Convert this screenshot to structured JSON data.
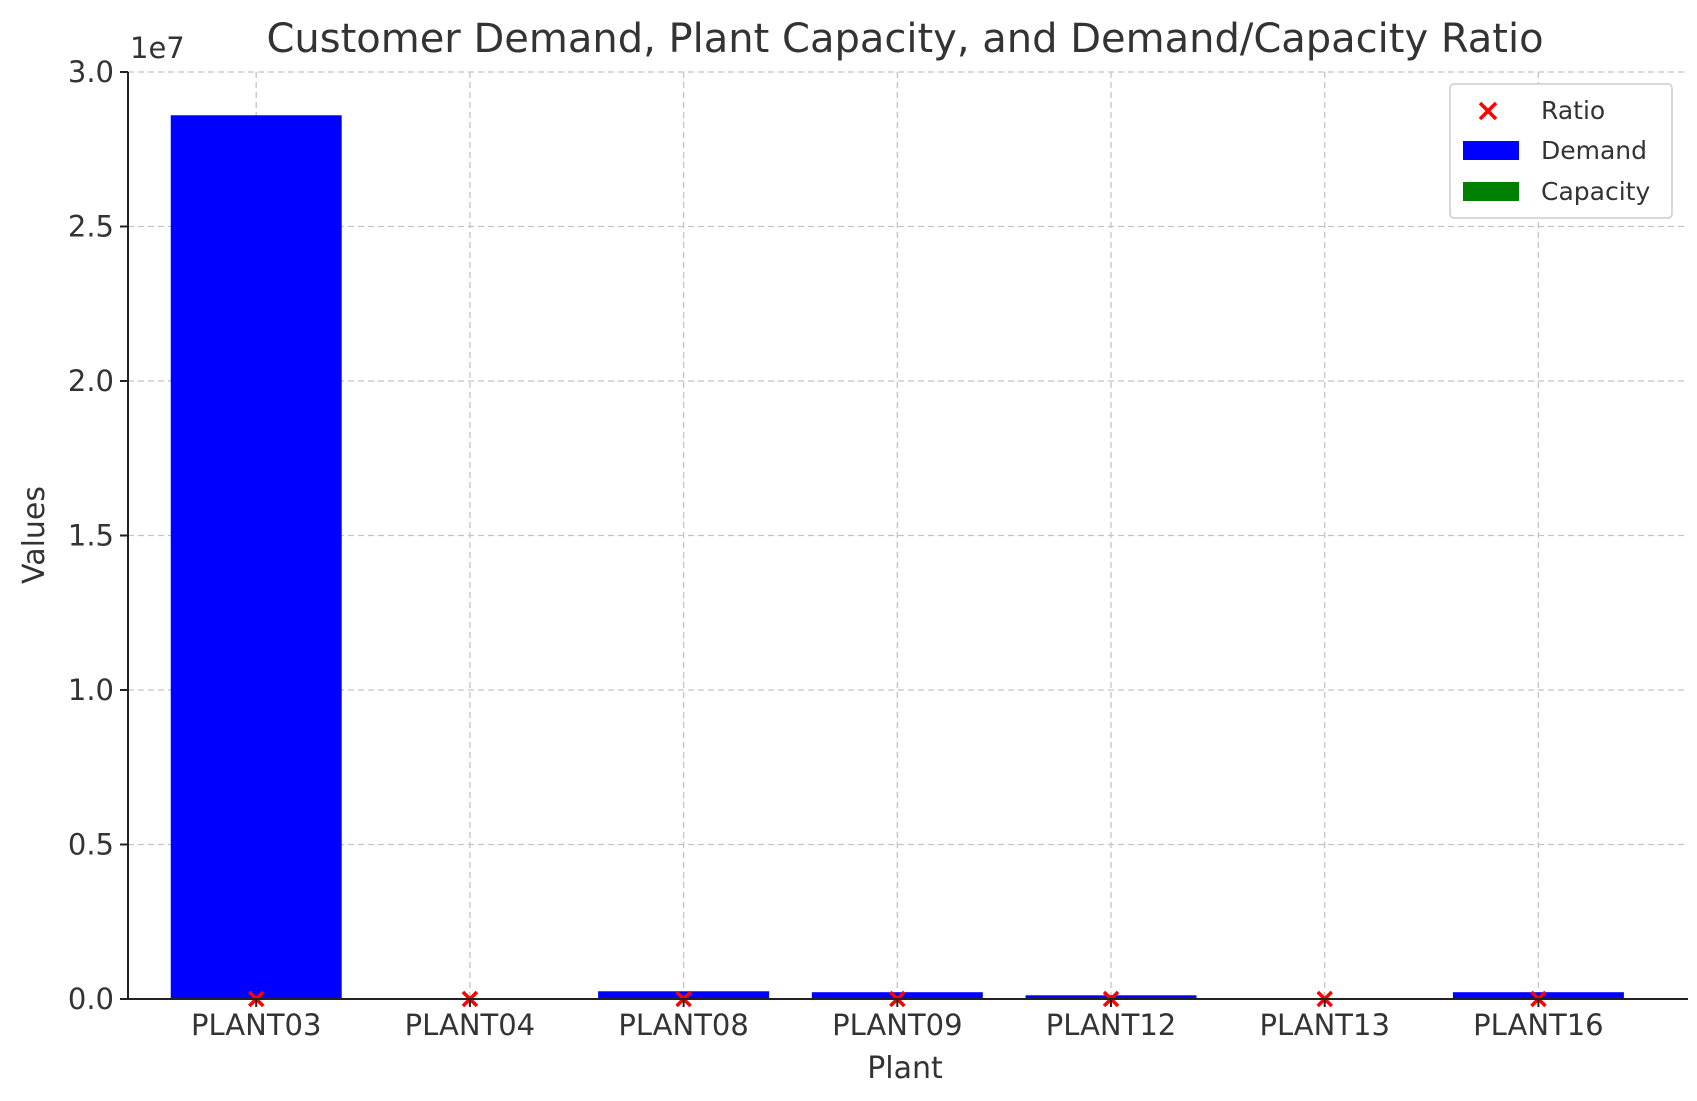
{
  "chart_data": {
    "type": "bar",
    "title": "Customer Demand, Plant Capacity, and Demand/Capacity Ratio",
    "xlabel": "Plant",
    "ylabel": "Values",
    "offset_label": "1e7",
    "categories": [
      "PLANT03",
      "PLANT04",
      "PLANT08",
      "PLANT09",
      "PLANT12",
      "PLANT13",
      "PLANT16"
    ],
    "yticks": [
      0.0,
      0.5,
      1.0,
      1.5,
      2.0,
      2.5,
      3.0
    ],
    "ytick_labels": [
      "0.0",
      "0.5",
      "1.0",
      "1.5",
      "2.0",
      "2.5",
      "3.0"
    ],
    "ylim": [
      0,
      30000000
    ],
    "grid": true,
    "legend_position": "top-right",
    "series": [
      {
        "name": "Demand",
        "kind": "bar",
        "color": "#0000ff",
        "values": [
          28600000,
          0,
          250000,
          220000,
          120000,
          0,
          220000
        ]
      },
      {
        "name": "Capacity",
        "kind": "bar",
        "color": "#008000",
        "values": [
          0,
          0,
          0,
          0,
          0,
          0,
          0
        ]
      },
      {
        "name": "Ratio",
        "kind": "scatter",
        "marker": "x",
        "color": "#ff0000",
        "values": [
          0,
          0,
          0,
          0,
          0,
          0,
          0
        ]
      }
    ]
  }
}
